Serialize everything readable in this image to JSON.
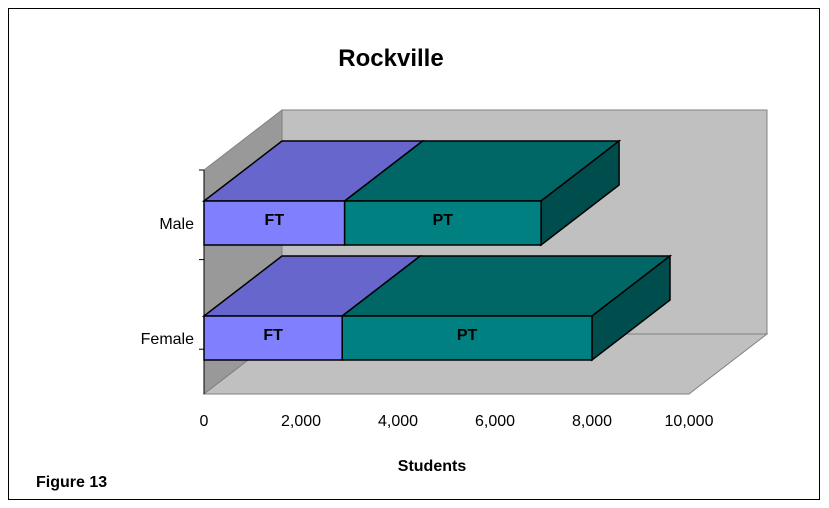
{
  "chart_data": {
    "type": "bar",
    "orientation": "horizontal",
    "stacked": true,
    "style": "3d",
    "title": "Rockville",
    "xlabel": "Students",
    "ylabel": "",
    "categories": [
      "Male",
      "Female"
    ],
    "series": [
      {
        "name": "FT",
        "label": "FT",
        "values": [
          2900,
          2850
        ],
        "color": "#8080ff",
        "top_color": "#6666cc",
        "side_color": "#4d4d99"
      },
      {
        "name": "PT",
        "label": "PT",
        "values": [
          4050,
          5150
        ],
        "color": "#008080",
        "top_color": "#006666",
        "side_color": "#004d4d"
      }
    ],
    "xlim": [
      0,
      10000
    ],
    "xticks": [
      "0",
      "2,000",
      "4,000",
      "6,000",
      "8,000",
      "10,000"
    ],
    "grid": false,
    "legend": "none",
    "colors": {
      "back_wall": "#c0c0c0",
      "floor": "#c0c0c0",
      "side_wall": "#999999"
    }
  },
  "figure_caption": "Figure 13"
}
